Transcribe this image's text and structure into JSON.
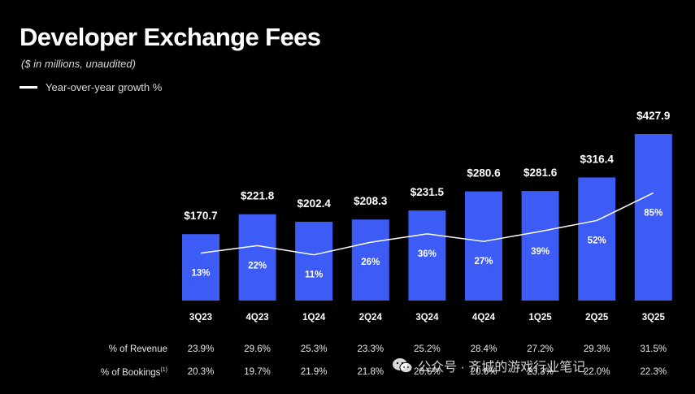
{
  "header": {
    "title": "Developer Exchange Fees",
    "subtitle": "($ in millions, unaudited)"
  },
  "legend": {
    "label": "Year-over-year growth %"
  },
  "chart_data": {
    "type": "bar",
    "title": "Developer Exchange Fees",
    "categories": [
      "3Q23",
      "4Q23",
      "1Q24",
      "2Q24",
      "3Q24",
      "4Q24",
      "1Q25",
      "2Q25",
      "3Q25"
    ],
    "value_labels": [
      "$170.7",
      "$221.8",
      "$202.4",
      "$208.3",
      "$231.5",
      "$280.6",
      "$281.6",
      "$316.4",
      "$427.9"
    ],
    "series": [
      {
        "name": "Developer Exchange Fees",
        "values": [
          170.7,
          221.8,
          202.4,
          208.3,
          231.5,
          280.6,
          281.6,
          316.4,
          427.9
        ],
        "color": "#3d5bf5"
      },
      {
        "name": "Year-over-year growth %",
        "kind": "line",
        "values": [
          13,
          22,
          11,
          26,
          36,
          27,
          39,
          52,
          85
        ],
        "labels": [
          "13%",
          "22%",
          "11%",
          "26%",
          "36%",
          "27%",
          "39%",
          "52%",
          "85%"
        ],
        "color": "#ffffff"
      }
    ],
    "ylim": [
      0,
      430
    ],
    "grid": false
  },
  "table": {
    "rows": [
      {
        "label": "% of Revenue",
        "values": [
          "23.9%",
          "29.6%",
          "25.3%",
          "23.3%",
          "25.2%",
          "28.4%",
          "27.2%",
          "29.3%",
          "31.5%"
        ]
      },
      {
        "label": "% of Bookings",
        "footnote": "(1)",
        "values": [
          "20.3%",
          "19.7%",
          "21.9%",
          "21.8%",
          "20.6%",
          "20.6%",
          "23.3%",
          "22.0%",
          "22.3%"
        ]
      }
    ]
  },
  "watermark": {
    "text": "公众号 · 齐城的游戏行业笔记",
    "icon": "wechat-icon"
  }
}
